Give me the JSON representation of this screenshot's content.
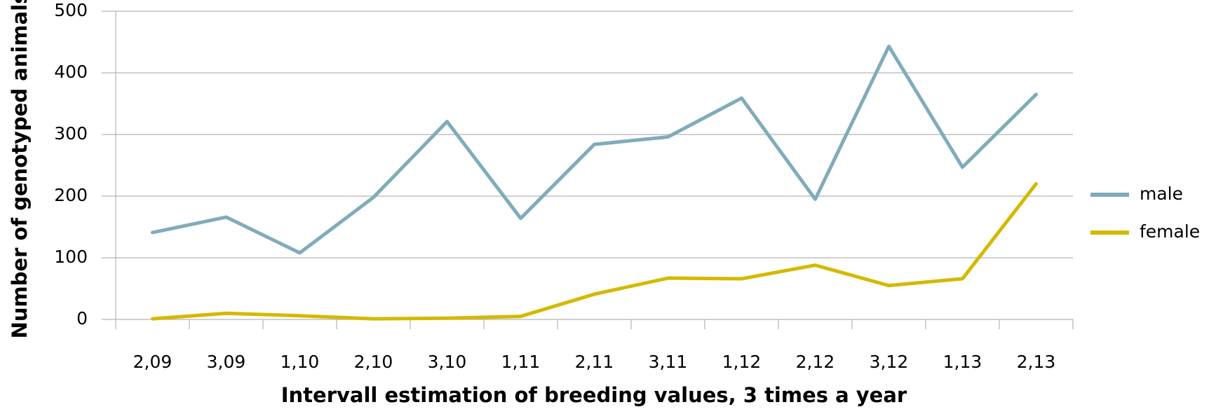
{
  "chart_data": {
    "type": "line",
    "categories": [
      "2,09",
      "3,09",
      "1,10",
      "2,10",
      "3,10",
      "1,11",
      "2,11",
      "3,11",
      "1,12",
      "2,12",
      "3,12",
      "1,13",
      "2,13"
    ],
    "series": [
      {
        "name": "male",
        "color": "#80abbb",
        "values": [
          141,
          166,
          108,
          198,
          321,
          164,
          284,
          296,
          359,
          195,
          443,
          247,
          365
        ]
      },
      {
        "name": "female",
        "color": "#d4b900",
        "values": [
          1,
          10,
          6,
          1,
          2,
          5,
          41,
          67,
          66,
          88,
          55,
          66,
          220
        ]
      }
    ],
    "xlabel": "Intervall estimation of breeding values, 3 times a year",
    "ylabel": "Number of genotyped animals",
    "ylim": [
      0,
      500
    ],
    "yticks": [
      0,
      100,
      200,
      300,
      400,
      500
    ],
    "grid": true,
    "legend": "right"
  }
}
